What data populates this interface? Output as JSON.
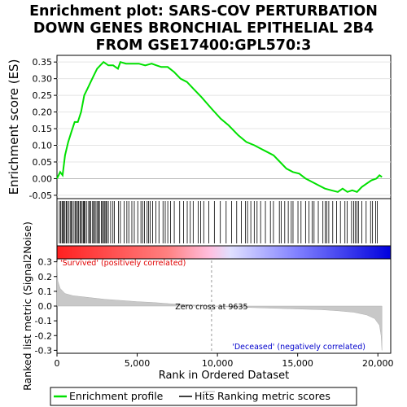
{
  "chart_data": {
    "type": "line",
    "title_lines": [
      "Enrichment plot: SARS-COV PERTURBATION",
      "DOWN GENES BRONCHIAL EPITHELIAL 2B4",
      "FROM GSE17400:GPL570:3"
    ],
    "es_panel": {
      "ylabel": "Enrichment score (ES)",
      "yticks": [
        "0.35",
        "0.30",
        "0.25",
        "0.20",
        "0.15",
        "0.10",
        "0.05",
        "0.00",
        "-0.05"
      ],
      "ylim": [
        -0.06,
        0.37
      ],
      "series_name": "Enrichment profile",
      "color": "#00e000",
      "points": [
        [
          0,
          0.0
        ],
        [
          200,
          0.02
        ],
        [
          350,
          0.01
        ],
        [
          500,
          0.07
        ],
        [
          700,
          0.11
        ],
        [
          900,
          0.14
        ],
        [
          1100,
          0.17
        ],
        [
          1300,
          0.17
        ],
        [
          1500,
          0.2
        ],
        [
          1700,
          0.25
        ],
        [
          1900,
          0.27
        ],
        [
          2100,
          0.29
        ],
        [
          2300,
          0.31
        ],
        [
          2500,
          0.33
        ],
        [
          2700,
          0.34
        ],
        [
          2900,
          0.35
        ],
        [
          3200,
          0.34
        ],
        [
          3500,
          0.34
        ],
        [
          3800,
          0.33
        ],
        [
          3950,
          0.35
        ],
        [
          4300,
          0.345
        ],
        [
          4700,
          0.345
        ],
        [
          5100,
          0.345
        ],
        [
          5500,
          0.34
        ],
        [
          5900,
          0.345
        ],
        [
          6200,
          0.34
        ],
        [
          6500,
          0.335
        ],
        [
          6900,
          0.335
        ],
        [
          7300,
          0.32
        ],
        [
          7700,
          0.3
        ],
        [
          8100,
          0.29
        ],
        [
          8500,
          0.27
        ],
        [
          9000,
          0.245
        ],
        [
          9635,
          0.21
        ],
        [
          10200,
          0.18
        ],
        [
          10700,
          0.16
        ],
        [
          11300,
          0.13
        ],
        [
          11800,
          0.11
        ],
        [
          12300,
          0.1
        ],
        [
          12700,
          0.09
        ],
        [
          13100,
          0.08
        ],
        [
          13500,
          0.07
        ],
        [
          13900,
          0.05
        ],
        [
          14300,
          0.03
        ],
        [
          14700,
          0.02
        ],
        [
          15100,
          0.015
        ],
        [
          15500,
          0.0
        ],
        [
          15900,
          -0.01
        ],
        [
          16300,
          -0.02
        ],
        [
          16700,
          -0.03
        ],
        [
          17100,
          -0.035
        ],
        [
          17500,
          -0.04
        ],
        [
          17800,
          -0.03
        ],
        [
          18100,
          -0.04
        ],
        [
          18400,
          -0.035
        ],
        [
          18700,
          -0.04
        ],
        [
          19000,
          -0.025
        ],
        [
          19300,
          -0.015
        ],
        [
          19600,
          -0.005
        ],
        [
          19900,
          0.0
        ],
        [
          20100,
          0.01
        ],
        [
          20250,
          0.005
        ]
      ]
    },
    "hits_panel": {
      "series_name": "Hits",
      "hit_positions": [
        [
          150,
          19900,
          400
        ]
      ]
    },
    "metric_panel": {
      "ylabel": "Ranked list metric (Signal2Noise)",
      "yticks": [
        "0.3",
        "0.2",
        "0.1",
        "0.0",
        "-0.1",
        "-0.2",
        "-0.3"
      ],
      "ylim": [
        -0.32,
        0.32
      ],
      "series_name": "Ranking metric scores",
      "color": "#c8c8c8",
      "profile": [
        [
          0,
          0.3
        ],
        [
          50,
          0.17
        ],
        [
          200,
          0.12
        ],
        [
          500,
          0.085
        ],
        [
          1000,
          0.07
        ],
        [
          2000,
          0.058
        ],
        [
          3000,
          0.046
        ],
        [
          4000,
          0.038
        ],
        [
          5000,
          0.03
        ],
        [
          6000,
          0.024
        ],
        [
          7000,
          0.016
        ],
        [
          8000,
          0.01
        ],
        [
          9000,
          0.004
        ],
        [
          9635,
          0.0
        ],
        [
          10500,
          -0.005
        ],
        [
          12000,
          -0.01
        ],
        [
          13500,
          -0.015
        ],
        [
          15000,
          -0.02
        ],
        [
          16500,
          -0.025
        ],
        [
          17500,
          -0.032
        ],
        [
          18500,
          -0.042
        ],
        [
          19300,
          -0.06
        ],
        [
          19800,
          -0.085
        ],
        [
          20100,
          -0.13
        ],
        [
          20200,
          -0.2
        ],
        [
          20250,
          -0.3
        ]
      ],
      "label_positive": "'Survived' (positively correlated)",
      "label_negative": "'Deceased' (negatively correlated)",
      "zero_cross_label": "Zero cross at 9635",
      "zero_cross": 9635
    },
    "x_axis": {
      "xlabel": "Rank in Ordered Dataset",
      "xlim": [
        0,
        20800
      ],
      "xticks": [
        {
          "value": 0,
          "label": "0"
        },
        {
          "value": 5000,
          "label": "5,000"
        },
        {
          "value": 10000,
          "label": "10,000"
        },
        {
          "value": 15000,
          "label": "15,000"
        },
        {
          "value": 20000,
          "label": "20,000"
        }
      ]
    },
    "heat_colors": [
      "#ff2020",
      "#ff8080",
      "#ffc0e0",
      "#e0e0ff",
      "#8080ff",
      "#0000dd"
    ],
    "legend": [
      {
        "name": "Enrichment profile",
        "color": "#00e000"
      },
      {
        "name": "Hits",
        "color": "#000000"
      },
      {
        "name": "Ranking metric scores",
        "color": "#c8c8c8"
      }
    ]
  }
}
